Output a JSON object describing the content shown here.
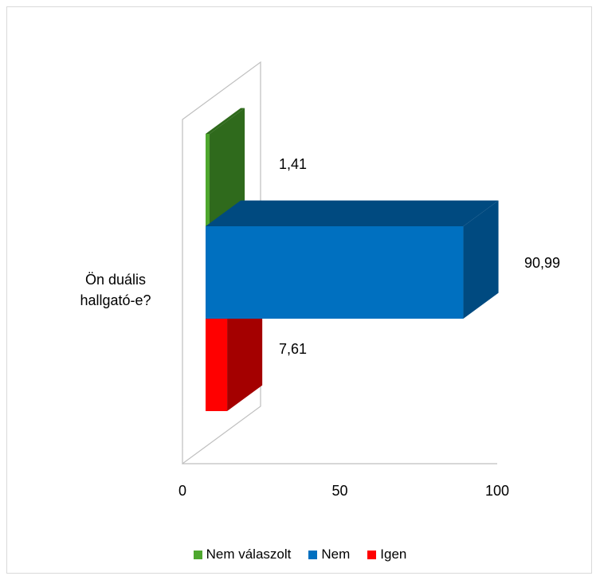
{
  "chart_data": {
    "type": "bar",
    "orientation": "horizontal",
    "style": "3d-clustered",
    "categories": [
      "Ön duális hallgató-e?"
    ],
    "category_lines": [
      "Ön duális",
      "hallgató-e?"
    ],
    "series": [
      {
        "name": "Nem válaszolt",
        "values": [
          1.41
        ],
        "label": "1,41",
        "color": "#4ea72e",
        "side_color": "#2f6a1c"
      },
      {
        "name": "Nem",
        "values": [
          90.99
        ],
        "label": "90,99",
        "color": "#0070c0",
        "side_color": "#004a80"
      },
      {
        "name": "Igen",
        "values": [
          7.61
        ],
        "label": "7,61",
        "color": "#ff0000",
        "side_color": "#a40000"
      }
    ],
    "xlim": [
      0,
      100
    ],
    "x_ticks": [
      "0",
      "50",
      "100"
    ],
    "x_tick_values": [
      0,
      50,
      100
    ],
    "legend_position": "bottom",
    "grid": false,
    "xlabel": "",
    "ylabel": ""
  }
}
